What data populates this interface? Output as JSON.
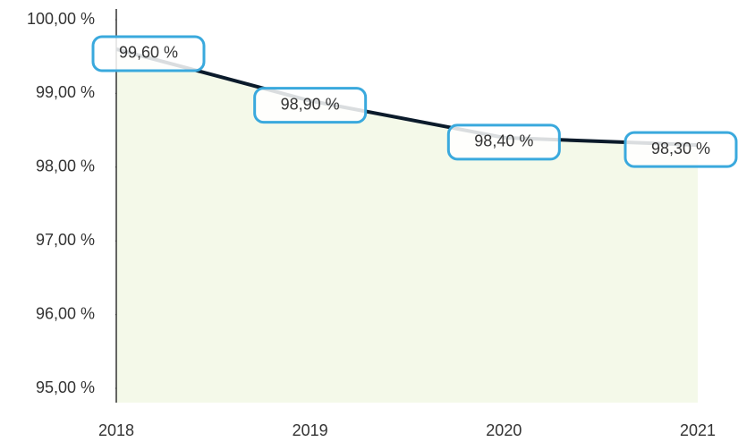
{
  "chart_data": {
    "type": "line",
    "categories": [
      "2018",
      "2019",
      "2020",
      "2021"
    ],
    "series": [
      {
        "values": [
          99.6,
          98.9,
          98.4,
          98.3
        ],
        "value_labels": [
          "99,60 %",
          "98,90 %",
          "98,40 %",
          "98,30 %"
        ],
        "color": "#0b1b2b"
      }
    ],
    "area_color": "#f4f9e9",
    "label_border_color": "#3aa9dd",
    "ylim": [
      95,
      100
    ],
    "yticks": [
      {
        "value": 95,
        "label": "95,00 %"
      },
      {
        "value": 96,
        "label": "96,00 %"
      },
      {
        "value": 97,
        "label": "97,00 %"
      },
      {
        "value": 98,
        "label": "98,00 %"
      },
      {
        "value": 99,
        "label": "99,00 %"
      },
      {
        "value": 100,
        "label": "100,00 %"
      }
    ]
  }
}
